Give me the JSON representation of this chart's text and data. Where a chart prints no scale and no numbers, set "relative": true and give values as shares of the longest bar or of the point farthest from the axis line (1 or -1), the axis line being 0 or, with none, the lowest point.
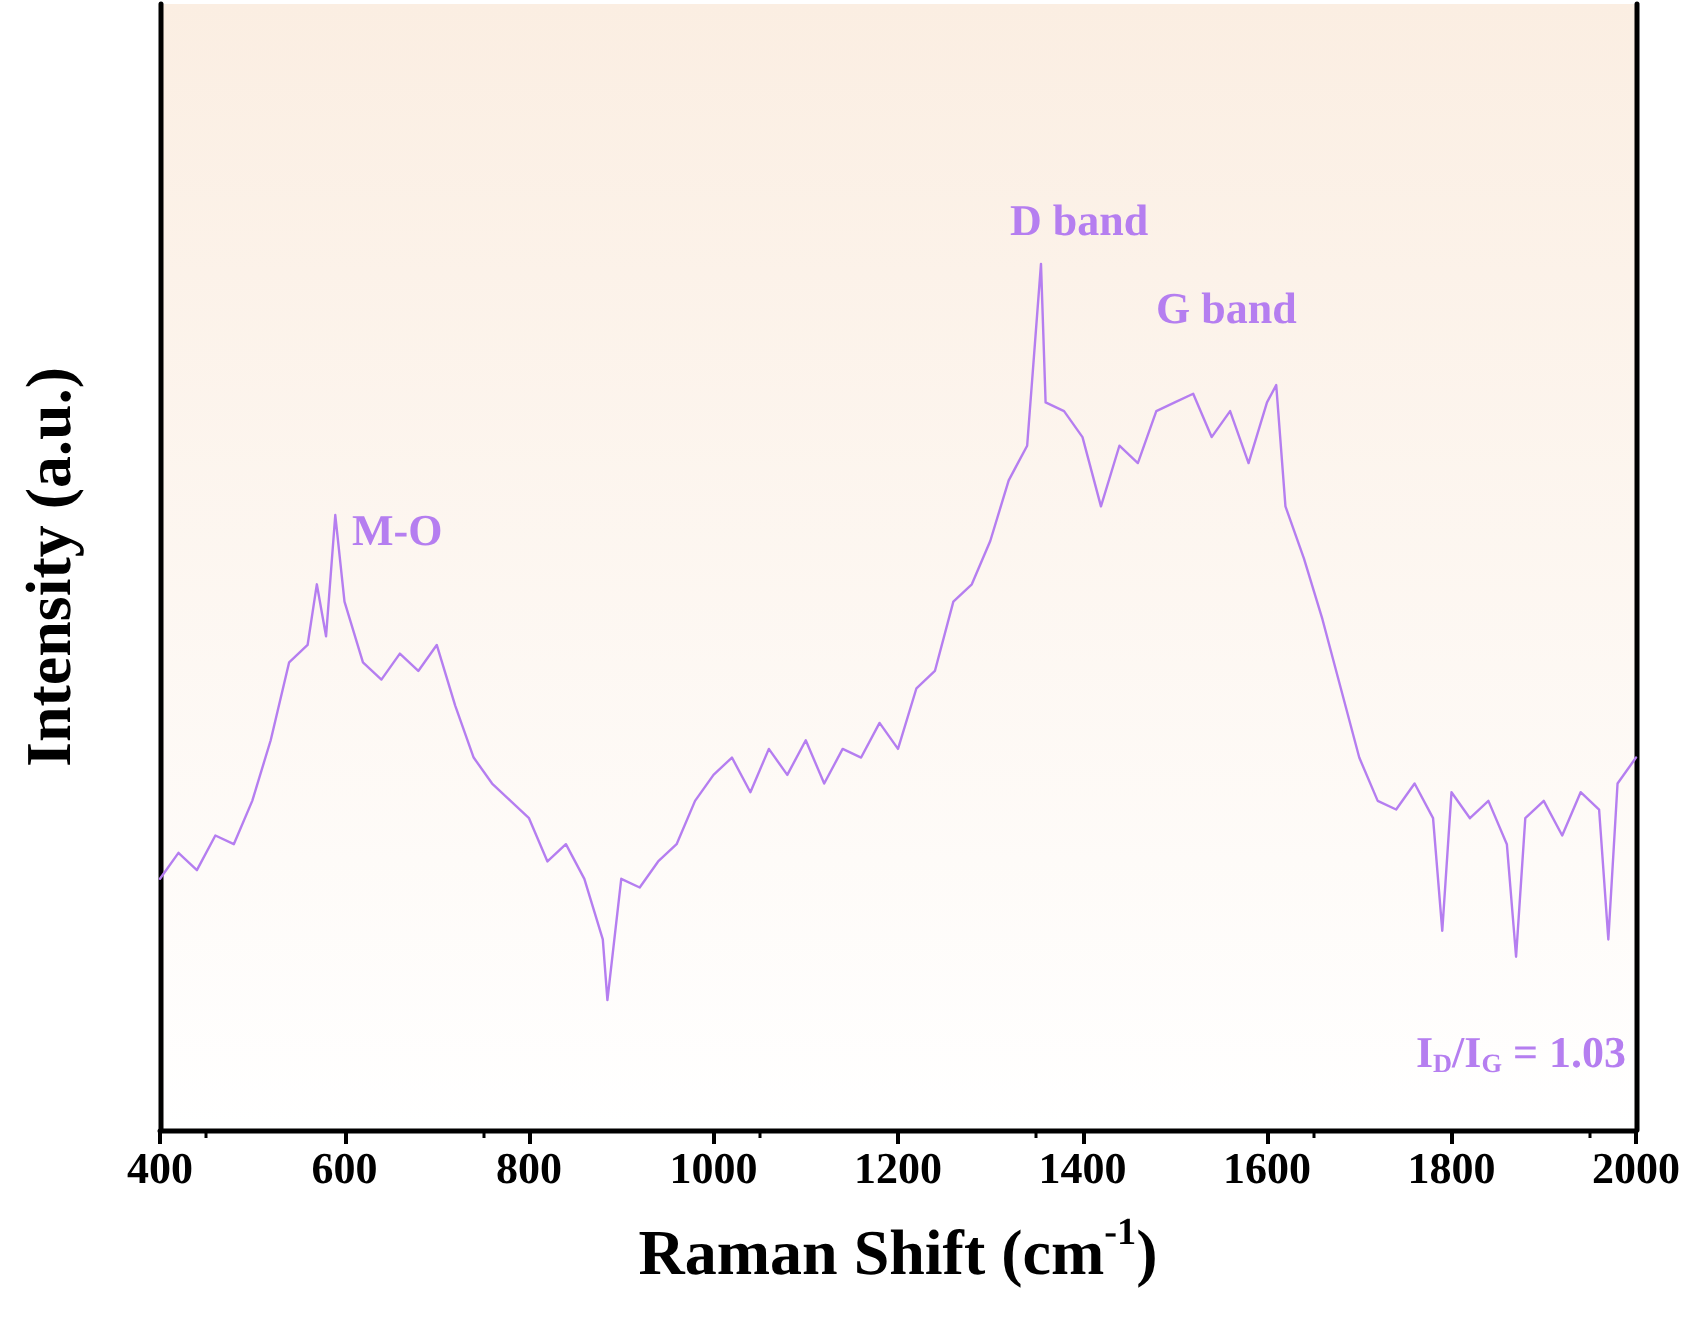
{
  "chart_data": {
    "type": "line",
    "relative": true,
    "xlabel": "Raman Shift (cm$^{-1}$)",
    "ylabel": "Intensity (a.u.)",
    "xlim": [
      400,
      2000
    ],
    "xticks": [
      400,
      600,
      800,
      1000,
      1200,
      1400,
      1600,
      1800,
      2000
    ],
    "grid": false,
    "marker": "none",
    "line_style": "solid",
    "x": [
      400,
      420,
      440,
      460,
      480,
      500,
      520,
      540,
      560,
      570,
      580,
      590,
      600,
      620,
      640,
      660,
      680,
      700,
      720,
      740,
      760,
      780,
      800,
      820,
      840,
      860,
      880,
      885,
      900,
      920,
      940,
      960,
      980,
      1000,
      1020,
      1040,
      1060,
      1080,
      1100,
      1120,
      1140,
      1160,
      1180,
      1200,
      1220,
      1240,
      1260,
      1280,
      1300,
      1320,
      1340,
      1355,
      1360,
      1380,
      1400,
      1420,
      1440,
      1460,
      1480,
      1500,
      1520,
      1540,
      1560,
      1580,
      1600,
      1610,
      1620,
      1640,
      1660,
      1680,
      1700,
      1720,
      1740,
      1760,
      1780,
      1790,
      1800,
      1820,
      1840,
      1860,
      1870,
      1880,
      1900,
      1920,
      1940,
      1960,
      1970,
      1980,
      2000
    ],
    "series": [
      {
        "color": "#b57ef0",
        "values": [
          0.29,
          0.32,
          0.3,
          0.34,
          0.33,
          0.38,
          0.45,
          0.54,
          0.56,
          0.63,
          0.57,
          0.71,
          0.61,
          0.54,
          0.52,
          0.55,
          0.53,
          0.56,
          0.49,
          0.43,
          0.4,
          0.38,
          0.36,
          0.31,
          0.33,
          0.29,
          0.22,
          0.15,
          0.29,
          0.28,
          0.31,
          0.33,
          0.38,
          0.41,
          0.43,
          0.39,
          0.44,
          0.41,
          0.45,
          0.4,
          0.44,
          0.43,
          0.47,
          0.44,
          0.51,
          0.53,
          0.61,
          0.63,
          0.68,
          0.75,
          0.79,
          1.0,
          0.84,
          0.83,
          0.8,
          0.72,
          0.79,
          0.77,
          0.83,
          0.84,
          0.85,
          0.8,
          0.83,
          0.77,
          0.84,
          0.86,
          0.72,
          0.66,
          0.59,
          0.51,
          0.43,
          0.38,
          0.37,
          0.4,
          0.36,
          0.23,
          0.39,
          0.36,
          0.38,
          0.33,
          0.2,
          0.36,
          0.38,
          0.34,
          0.39,
          0.37,
          0.22,
          0.4,
          0.43
        ]
      }
    ],
    "annotations": [
      "M-O",
      "D band",
      "G band",
      "I$_{D}$/I$_{G}$ = 1.03"
    ]
  }
}
